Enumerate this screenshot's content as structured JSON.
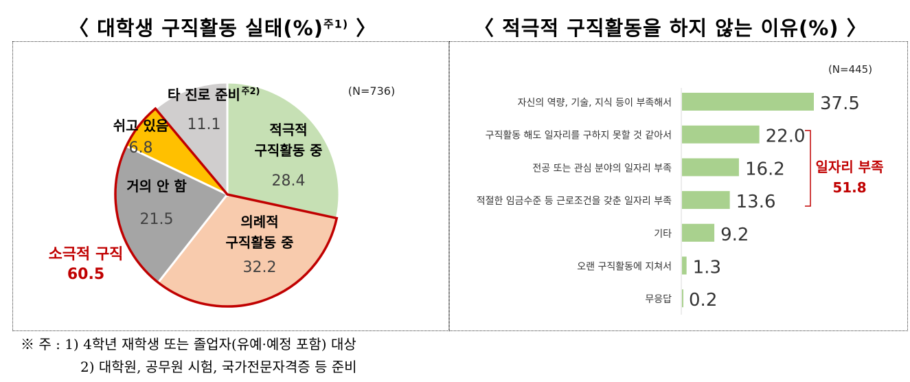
{
  "chart_data": [
    {
      "type": "pie",
      "title": "〈 대학생 구직활동 실태(%)",
      "title_note": "주1)",
      "title_close": "〉",
      "sample": "(N=736)",
      "slices": [
        {
          "label": "적극적\n구직활동 중",
          "value": 28.4,
          "color": "#c6e0b4"
        },
        {
          "label": "의례적\n구직활동 중",
          "value": 32.2,
          "color": "#f8cbad"
        },
        {
          "label": "거의 안 함",
          "value": 21.5,
          "color": "#a5a5a5"
        },
        {
          "label": "쉬고 있음",
          "value": 6.8,
          "color": "#ffc000"
        },
        {
          "label": "타 진로 준비",
          "label_note": "주2)",
          "value": 11.1,
          "color": "#d0cece"
        }
      ],
      "annotation": {
        "label": "소극적 구직",
        "value": "60.5",
        "color": "#c00000"
      }
    },
    {
      "type": "bar",
      "orientation": "horizontal",
      "title": "〈 적극적 구직활동을 하지 않는 이유(%) 〉",
      "sample": "(N=445)",
      "categories": [
        "자신의 역량, 기술, 지식 등이 부족해서",
        "구직활동 해도 일자리를 구하지 못할 것 같아서",
        "전공 또는 관심 분야의 일자리 부족",
        "적절한 임금수준 등 근로조건을 갖춘 일자리 부족",
        "기타",
        "오랜 구직활동에 지쳐서",
        "무응답"
      ],
      "values": [
        37.5,
        22.0,
        16.2,
        13.6,
        9.2,
        1.3,
        0.2
      ],
      "bar_color": "#a9d18e",
      "annotation": {
        "label": "일자리 부족",
        "value": "51.8",
        "color": "#c00000"
      }
    }
  ],
  "notes": [
    "※ 주 : 1) 4학년 재학생 또는 졸업자(유예·예정 포함) 대상",
    "2) 대학원, 공무원 시험, 국가전문자격증 등 준비"
  ]
}
